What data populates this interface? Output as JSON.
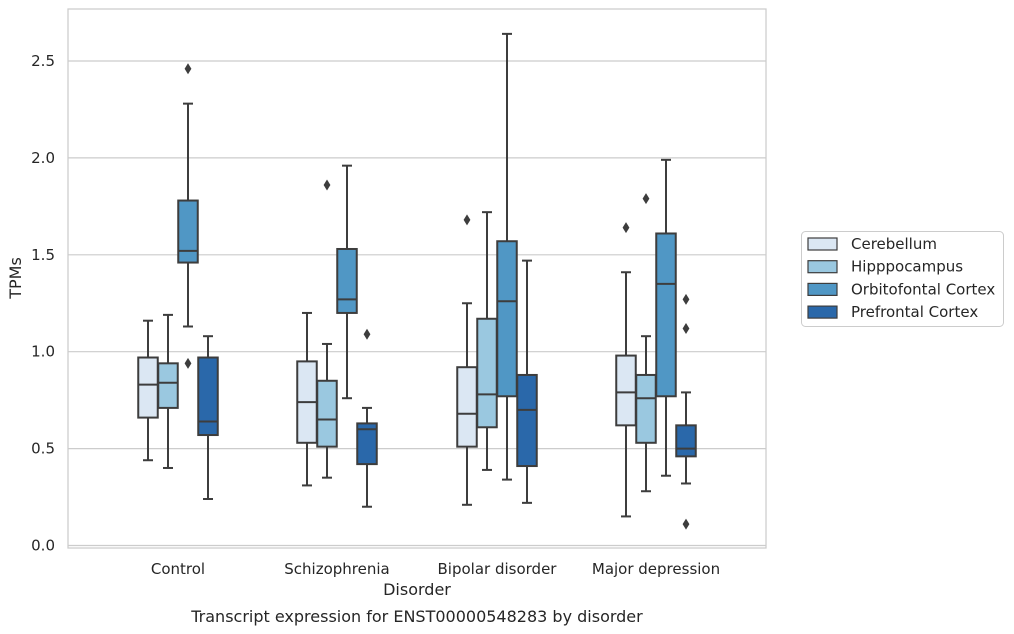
{
  "caption": "Transcript expression for ENST00000548283 by disorder",
  "chart_data": {
    "type": "box",
    "xlabel": "Disorder",
    "ylabel": "TPMs",
    "ylim": [
      0,
      2.78
    ],
    "yticks": [
      "0.0",
      "0.5",
      "1.0",
      "1.5",
      "2.0",
      "2.5"
    ],
    "grid": "horizontal",
    "legend_position": "right",
    "categories": [
      "Control",
      "Schizophrenia",
      "Bipolar disorder",
      "Major depression"
    ],
    "series": [
      {
        "name": "Cerebellum",
        "color": "#dbe7f3",
        "boxes": [
          {
            "whislo": 0.44,
            "q1": 0.66,
            "med": 0.83,
            "q3": 0.97,
            "whishi": 1.16,
            "fliers": []
          },
          {
            "whislo": 0.31,
            "q1": 0.53,
            "med": 0.74,
            "q3": 0.95,
            "whishi": 1.2,
            "fliers": []
          },
          {
            "whislo": 0.21,
            "q1": 0.51,
            "med": 0.68,
            "q3": 0.92,
            "whishi": 1.25,
            "fliers": [
              1.68
            ]
          },
          {
            "whislo": 0.15,
            "q1": 0.62,
            "med": 0.79,
            "q3": 0.98,
            "whishi": 1.41,
            "fliers": [
              1.64
            ]
          }
        ]
      },
      {
        "name": "Hipppocampus",
        "color": "#9ac8e0",
        "boxes": [
          {
            "whislo": 0.4,
            "q1": 0.71,
            "med": 0.84,
            "q3": 0.94,
            "whishi": 1.19,
            "fliers": []
          },
          {
            "whislo": 0.35,
            "q1": 0.51,
            "med": 0.65,
            "q3": 0.85,
            "whishi": 1.04,
            "fliers": [
              1.86
            ]
          },
          {
            "whislo": 0.39,
            "q1": 0.61,
            "med": 0.78,
            "q3": 1.17,
            "whishi": 1.72,
            "fliers": []
          },
          {
            "whislo": 0.28,
            "q1": 0.53,
            "med": 0.76,
            "q3": 0.88,
            "whishi": 1.08,
            "fliers": [
              1.79
            ]
          }
        ]
      },
      {
        "name": "Orbitofontal Cortex",
        "color": "#5097c5",
        "boxes": [
          {
            "whislo": 1.13,
            "q1": 1.46,
            "med": 1.52,
            "q3": 1.78,
            "whishi": 2.28,
            "fliers": [
              2.46,
              0.94
            ]
          },
          {
            "whislo": 0.76,
            "q1": 1.2,
            "med": 1.27,
            "q3": 1.53,
            "whishi": 1.96,
            "fliers": []
          },
          {
            "whislo": 0.34,
            "q1": 0.77,
            "med": 1.26,
            "q3": 1.57,
            "whishi": 2.64,
            "fliers": []
          },
          {
            "whislo": 0.36,
            "q1": 0.77,
            "med": 1.35,
            "q3": 1.61,
            "whishi": 1.99,
            "fliers": []
          }
        ]
      },
      {
        "name": "Prefrontal Cortex",
        "color": "#2a68aa",
        "boxes": [
          {
            "whislo": 0.24,
            "q1": 0.57,
            "med": 0.64,
            "q3": 0.97,
            "whishi": 1.08,
            "fliers": []
          },
          {
            "whislo": 0.2,
            "q1": 0.42,
            "med": 0.6,
            "q3": 0.63,
            "whishi": 0.71,
            "fliers": [
              1.09
            ]
          },
          {
            "whislo": 0.22,
            "q1": 0.41,
            "med": 0.7,
            "q3": 0.88,
            "whishi": 1.47,
            "fliers": []
          },
          {
            "whislo": 0.32,
            "q1": 0.46,
            "med": 0.5,
            "q3": 0.62,
            "whishi": 0.79,
            "fliers": [
              1.27,
              1.12,
              0.11
            ]
          }
        ]
      }
    ]
  }
}
